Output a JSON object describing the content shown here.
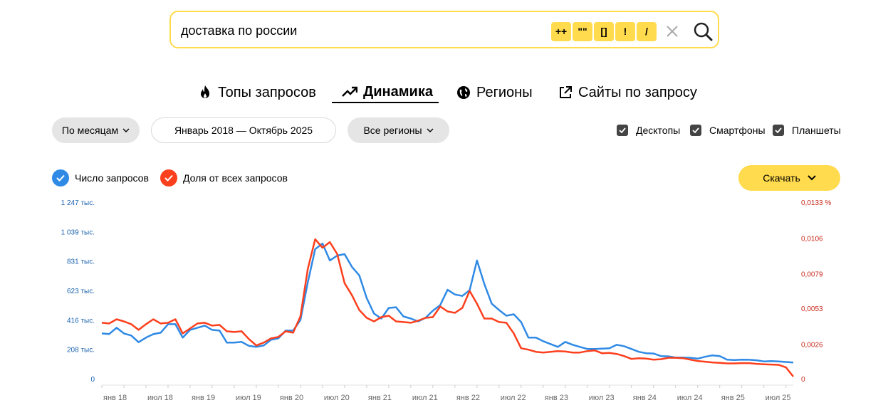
{
  "search": {
    "query": "доставка по россии",
    "operators": [
      "++",
      "\"\"",
      "[]",
      "!",
      "/"
    ]
  },
  "tabs": [
    {
      "label": "Топы запросов",
      "icon": "fire-icon",
      "active": false
    },
    {
      "label": "Динамика",
      "icon": "trend-icon",
      "active": true
    },
    {
      "label": "Регионы",
      "icon": "globe-icon",
      "active": false
    },
    {
      "label": "Сайты по запросу",
      "icon": "external-link-icon",
      "active": false
    }
  ],
  "filters": {
    "period": "По месяцам",
    "date_range": "Январь 2018 — Октябрь 2025",
    "regions": "Все регионы",
    "devices": [
      {
        "label": "Десктопы",
        "checked": true
      },
      {
        "label": "Смартфоны",
        "checked": true
      },
      {
        "label": "Планшеты",
        "checked": true
      }
    ]
  },
  "legend": {
    "count_label": "Число запросов",
    "share_label": "Доля от всех запросов"
  },
  "download_label": "Скачать",
  "colors": {
    "accent": "#ffdb4d",
    "count_series": "#2f8ae5",
    "share_series": "#fc3f1d",
    "left_axis": "#1b63b0",
    "right_axis": "#c7291b"
  },
  "chart_data": {
    "type": "line",
    "x_tick_labels": [
      "янв 18",
      "июл 18",
      "янв 19",
      "июл 19",
      "янв 20",
      "июл 20",
      "янв 21",
      "июл 21",
      "янв 22",
      "июл 22",
      "янв 23",
      "июл 23",
      "янв 24",
      "июл 24",
      "янв 25",
      "июл 25"
    ],
    "x_start": "2018-01",
    "x_end": "2025-10",
    "y_left": {
      "ticks": [
        0,
        208,
        416,
        623,
        831,
        1039,
        1247
      ],
      "tick_labels": [
        "0",
        "208 тыс.",
        "416 тыс.",
        "623 тыс.",
        "831 тыс.",
        "1 039 тыс.",
        "1 247 тыс."
      ],
      "max": 1247
    },
    "y_right": {
      "ticks": [
        0,
        0.0026,
        0.0053,
        0.0079,
        0.0106,
        0.0133
      ],
      "tick_labels": [
        "0",
        "0,0026",
        "0,0053",
        "0,0079",
        "0,0106",
        "0,0133 %"
      ],
      "max": 0.0133
    },
    "series": [
      {
        "name": "Число запросов",
        "axis": "left",
        "values": [
          320,
          316,
          360,
          320,
          305,
          258,
          290,
          315,
          325,
          385,
          385,
          290,
          345,
          360,
          375,
          345,
          340,
          255,
          255,
          260,
          232,
          225,
          235,
          275,
          285,
          340,
          340,
          415,
          680,
          915,
          955,
          835,
          870,
          880,
          790,
          730,
          570,
          460,
          425,
          500,
          505,
          440,
          425,
          405,
          430,
          480,
          520,
          628,
          595,
          585,
          625,
          835,
          670,
          530,
          485,
          445,
          455,
          400,
          290,
          290,
          265,
          245,
          225,
          260,
          240,
          225,
          210,
          210,
          212,
          215,
          240,
          230,
          210,
          190,
          180,
          178,
          160,
          158,
          150,
          150,
          148,
          142,
          155,
          165,
          160,
          135,
          132,
          135,
          134,
          130,
          122,
          124,
          122,
          118,
          114
        ]
      },
      {
        "name": "Доля от всех запросов",
        "axis": "left",
        "values": [
          395,
          390,
          420,
          405,
          385,
          345,
          385,
          420,
          390,
          395,
          420,
          320,
          355,
          390,
          395,
          375,
          380,
          335,
          330,
          335,
          280,
          235,
          255,
          285,
          295,
          335,
          325,
          440,
          775,
          985,
          925,
          965,
          880,
          675,
          590,
          485,
          430,
          405,
          435,
          445,
          405,
          400,
          395,
          410,
          430,
          435,
          510,
          475,
          465,
          500,
          620,
          530,
          425,
          425,
          400,
          395,
          320,
          215,
          205,
          190,
          185,
          190,
          195,
          192,
          185,
          185,
          195,
          200,
          180,
          182,
          175,
          160,
          140,
          145,
          142,
          135,
          138,
          148,
          148,
          145,
          135,
          125,
          120,
          115,
          112,
          108,
          108,
          110,
          110,
          105,
          102,
          100,
          98,
          80,
          15
        ]
      }
    ]
  }
}
